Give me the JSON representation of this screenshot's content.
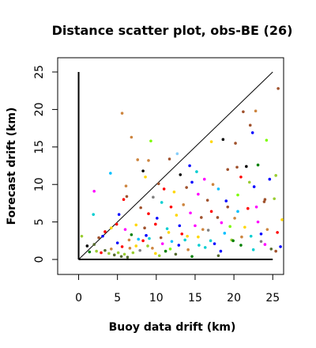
{
  "chart_data": {
    "type": "scatter",
    "title": "Distance scatter plot, obs-BE (26)",
    "xlabel": "Buoy data drift (km)",
    "ylabel": "Forecast drift (km)",
    "xlim": [
      -2.7,
      26.4
    ],
    "ylim": [
      -2.0,
      26.9
    ],
    "xticks": [
      0,
      5,
      10,
      15,
      20,
      25
    ],
    "yticks": [
      0,
      5,
      10,
      15,
      20,
      25
    ],
    "grid": false,
    "legend": "none",
    "reference_lines": [
      {
        "kind": "diagonal",
        "x": [
          0,
          25
        ],
        "y": [
          0,
          25
        ],
        "color": "#000000"
      },
      {
        "kind": "x-axis-ref",
        "x": [
          0,
          25
        ],
        "y": [
          0,
          0
        ],
        "color": "#000000"
      },
      {
        "kind": "y-axis-ref",
        "x": [
          0,
          0
        ],
        "y": [
          0,
          25
        ],
        "color": "#000000"
      }
    ],
    "points": [
      {
        "x": 5.6,
        "y": 19.5,
        "color": "#cd853f"
      },
      {
        "x": 6.8,
        "y": 16.3,
        "color": "#cd853f"
      },
      {
        "x": 9.3,
        "y": 15.8,
        "color": "#7cfc00"
      },
      {
        "x": 7.6,
        "y": 13.3,
        "color": "#cd853f"
      },
      {
        "x": 9.0,
        "y": 13.2,
        "color": "#cd853f"
      },
      {
        "x": 12.7,
        "y": 14.1,
        "color": "#87cefa"
      },
      {
        "x": 11.7,
        "y": 13.4,
        "color": "#a0522d"
      },
      {
        "x": 8.3,
        "y": 11.8,
        "color": "#000000"
      },
      {
        "x": 8.6,
        "y": 11.0,
        "color": "#ffd700"
      },
      {
        "x": 4.1,
        "y": 11.5,
        "color": "#00bfff"
      },
      {
        "x": 2.0,
        "y": 9.1,
        "color": "#ff00ff"
      },
      {
        "x": 6.1,
        "y": 9.8,
        "color": "#cd853f"
      },
      {
        "x": 6.2,
        "y": 8.4,
        "color": "#a0522d"
      },
      {
        "x": 5.8,
        "y": 8.0,
        "color": "#ff0000"
      },
      {
        "x": 5.2,
        "y": 6.0,
        "color": "#0000ff"
      },
      {
        "x": 4.9,
        "y": 4.7,
        "color": "#ff0000"
      },
      {
        "x": 4.2,
        "y": 4.2,
        "color": "#ffd700"
      },
      {
        "x": 3.4,
        "y": 3.7,
        "color": "#ff0000"
      },
      {
        "x": 3.1,
        "y": 3.1,
        "color": "#0000ff"
      },
      {
        "x": 2.6,
        "y": 2.9,
        "color": "#a0522d"
      },
      {
        "x": 1.9,
        "y": 6.0,
        "color": "#00ced1"
      },
      {
        "x": 2.0,
        "y": 2.0,
        "color": "#556b2f"
      },
      {
        "x": 1.1,
        "y": 1.8,
        "color": "#000000"
      },
      {
        "x": 0.4,
        "y": 3.1,
        "color": "#9acd32"
      },
      {
        "x": 1.4,
        "y": 1.0,
        "color": "#008000"
      },
      {
        "x": 2.3,
        "y": 1.1,
        "color": "#9acd32"
      },
      {
        "x": 2.9,
        "y": 0.9,
        "color": "#ff0000"
      },
      {
        "x": 3.4,
        "y": 1.2,
        "color": "#556b2f"
      },
      {
        "x": 3.9,
        "y": 0.8,
        "color": "#9acd32"
      },
      {
        "x": 4.2,
        "y": 1.4,
        "color": "#cd853f"
      },
      {
        "x": 4.6,
        "y": 0.6,
        "color": "#556b2f"
      },
      {
        "x": 5.1,
        "y": 0.9,
        "color": "#9acd32"
      },
      {
        "x": 5.5,
        "y": 0.4,
        "color": "#556b2f"
      },
      {
        "x": 5.9,
        "y": 0.7,
        "color": "#9acd32"
      },
      {
        "x": 6.3,
        "y": 0.3,
        "color": "#556b2f"
      },
      {
        "x": 6.6,
        "y": 1.5,
        "color": "#cd853f"
      },
      {
        "x": 7.0,
        "y": 0.9,
        "color": "#9acd32"
      },
      {
        "x": 7.4,
        "y": 1.8,
        "color": "#ffd700"
      },
      {
        "x": 7.9,
        "y": 1.2,
        "color": "#808080"
      },
      {
        "x": 8.3,
        "y": 2.5,
        "color": "#ff0000"
      },
      {
        "x": 8.7,
        "y": 3.2,
        "color": "#0000ff"
      },
      {
        "x": 9.1,
        "y": 2.8,
        "color": "#00ced1"
      },
      {
        "x": 9.5,
        "y": 1.5,
        "color": "#cd853f"
      },
      {
        "x": 9.9,
        "y": 0.8,
        "color": "#ffd700"
      },
      {
        "x": 10.4,
        "y": 0.5,
        "color": "#9acd32"
      },
      {
        "x": 10.8,
        "y": 2.1,
        "color": "#ff00ff"
      },
      {
        "x": 11.2,
        "y": 1.1,
        "color": "#008000"
      },
      {
        "x": 11.6,
        "y": 3.6,
        "color": "#ffd700"
      },
      {
        "x": 12.0,
        "y": 2.4,
        "color": "#00bfff"
      },
      {
        "x": 12.5,
        "y": 0.7,
        "color": "#556b2f"
      },
      {
        "x": 12.9,
        "y": 1.9,
        "color": "#0000ff"
      },
      {
        "x": 13.3,
        "y": 3.4,
        "color": "#ff0000"
      },
      {
        "x": 13.7,
        "y": 2.6,
        "color": "#00ced1"
      },
      {
        "x": 14.1,
        "y": 1.3,
        "color": "#cd853f"
      },
      {
        "x": 14.6,
        "y": 0.4,
        "color": "#008000"
      },
      {
        "x": 15.0,
        "y": 4.5,
        "color": "#ff00ff"
      },
      {
        "x": 15.4,
        "y": 3.0,
        "color": "#ffd700"
      },
      {
        "x": 15.8,
        "y": 5.6,
        "color": "#a0522d"
      },
      {
        "x": 16.3,
        "y": 1.6,
        "color": "#00ced1"
      },
      {
        "x": 16.7,
        "y": 3.9,
        "color": "#808080"
      },
      {
        "x": 17.1,
        "y": 6.4,
        "color": "#ff0000"
      },
      {
        "x": 17.5,
        "y": 2.1,
        "color": "#0000ff"
      },
      {
        "x": 18.0,
        "y": 0.5,
        "color": "#556b2f"
      },
      {
        "x": 18.4,
        "y": 4.9,
        "color": "#ff00ff"
      },
      {
        "x": 18.8,
        "y": 3.5,
        "color": "#00bfff"
      },
      {
        "x": 19.2,
        "y": 7.0,
        "color": "#a0522d"
      },
      {
        "x": 19.7,
        "y": 2.6,
        "color": "#9acd32"
      },
      {
        "x": 20.1,
        "y": 5.5,
        "color": "#cd853f"
      },
      {
        "x": 20.5,
        "y": 8.6,
        "color": "#7cfc00"
      },
      {
        "x": 20.9,
        "y": 1.9,
        "color": "#008000"
      },
      {
        "x": 21.4,
        "y": 4.3,
        "color": "#ffd700"
      },
      {
        "x": 21.8,
        "y": 6.8,
        "color": "#ff0000"
      },
      {
        "x": 22.2,
        "y": 3.1,
        "color": "#00ced1"
      },
      {
        "x": 22.6,
        "y": 9.7,
        "color": "#0000ff"
      },
      {
        "x": 23.1,
        "y": 5.0,
        "color": "#ff00ff"
      },
      {
        "x": 23.5,
        "y": 2.4,
        "color": "#808080"
      },
      {
        "x": 23.9,
        "y": 7.7,
        "color": "#a0522d"
      },
      {
        "x": 24.3,
        "y": 4.0,
        "color": "#cd853f"
      },
      {
        "x": 24.8,
        "y": 1.4,
        "color": "#556b2f"
      },
      {
        "x": 25.2,
        "y": 8.1,
        "color": "#9acd32"
      },
      {
        "x": 25.6,
        "y": 3.6,
        "color": "#ff0000"
      },
      {
        "x": 26.0,
        "y": 1.7,
        "color": "#0000ff"
      },
      {
        "x": 26.2,
        "y": 5.3,
        "color": "#ffd700"
      },
      {
        "x": 25.7,
        "y": 22.8,
        "color": "#a0522d"
      },
      {
        "x": 22.8,
        "y": 19.8,
        "color": "#cd853f"
      },
      {
        "x": 21.2,
        "y": 19.7,
        "color": "#a0522d"
      },
      {
        "x": 22.1,
        "y": 17.9,
        "color": "#a0522d"
      },
      {
        "x": 22.4,
        "y": 16.9,
        "color": "#0000ff"
      },
      {
        "x": 18.6,
        "y": 16.0,
        "color": "#000000"
      },
      {
        "x": 20.2,
        "y": 15.5,
        "color": "#a0522d"
      },
      {
        "x": 24.2,
        "y": 15.9,
        "color": "#7cfc00"
      },
      {
        "x": 17.1,
        "y": 15.7,
        "color": "#ffd700"
      },
      {
        "x": 21.6,
        "y": 12.4,
        "color": "#000000"
      },
      {
        "x": 23.1,
        "y": 12.6,
        "color": "#008000"
      },
      {
        "x": 25.4,
        "y": 11.2,
        "color": "#9acd32"
      },
      {
        "x": 19.2,
        "y": 12.0,
        "color": "#a0522d"
      },
      {
        "x": 20.4,
        "y": 12.3,
        "color": "#a0522d"
      },
      {
        "x": 14.3,
        "y": 12.5,
        "color": "#0000ff"
      },
      {
        "x": 15.2,
        "y": 11.7,
        "color": "#00ced1"
      },
      {
        "x": 13.1,
        "y": 11.3,
        "color": "#000000"
      },
      {
        "x": 16.2,
        "y": 10.7,
        "color": "#ff00ff"
      },
      {
        "x": 17.3,
        "y": 10.0,
        "color": "#cd853f"
      },
      {
        "x": 10.3,
        "y": 10.1,
        "color": "#a0522d"
      },
      {
        "x": 11.0,
        "y": 9.4,
        "color": "#ff0000"
      },
      {
        "x": 12.3,
        "y": 9.0,
        "color": "#ffd700"
      },
      {
        "x": 13.9,
        "y": 9.6,
        "color": "#a0522d"
      },
      {
        "x": 14.6,
        "y": 10.3,
        "color": "#0000ff"
      },
      {
        "x": 15.4,
        "y": 8.7,
        "color": "#ff00ff"
      },
      {
        "x": 18.0,
        "y": 9.4,
        "color": "#00bfff"
      },
      {
        "x": 20.9,
        "y": 11.0,
        "color": "#ff0000"
      },
      {
        "x": 22.0,
        "y": 10.3,
        "color": "#9acd32"
      },
      {
        "x": 24.6,
        "y": 10.7,
        "color": "#0000ff"
      },
      {
        "x": 24.0,
        "y": 8.0,
        "color": "#a0522d"
      },
      {
        "x": 9.6,
        "y": 8.3,
        "color": "#808080"
      },
      {
        "x": 10.7,
        "y": 7.6,
        "color": "#00ced1"
      },
      {
        "x": 11.9,
        "y": 7.0,
        "color": "#ff0000"
      },
      {
        "x": 13.5,
        "y": 7.3,
        "color": "#cd853f"
      },
      {
        "x": 16.6,
        "y": 7.9,
        "color": "#a0522d"
      },
      {
        "x": 19.0,
        "y": 7.8,
        "color": "#0000ff"
      },
      {
        "x": 22.9,
        "y": 7.0,
        "color": "#ff00ff"
      },
      {
        "x": 8.0,
        "y": 6.9,
        "color": "#a0522d"
      },
      {
        "x": 9.0,
        "y": 6.1,
        "color": "#ff0000"
      },
      {
        "x": 10.1,
        "y": 5.5,
        "color": "#0000ff"
      },
      {
        "x": 12.6,
        "y": 5.9,
        "color": "#ffd700"
      },
      {
        "x": 14.4,
        "y": 6.2,
        "color": "#ff00ff"
      },
      {
        "x": 17.9,
        "y": 5.6,
        "color": "#a0522d"
      },
      {
        "x": 20.5,
        "y": 6.4,
        "color": "#00bfff"
      },
      {
        "x": 7.4,
        "y": 4.6,
        "color": "#ffd700"
      },
      {
        "x": 8.5,
        "y": 4.2,
        "color": "#a0522d"
      },
      {
        "x": 9.9,
        "y": 4.7,
        "color": "#ff0000"
      },
      {
        "x": 11.4,
        "y": 4.1,
        "color": "#00ced1"
      },
      {
        "x": 13.0,
        "y": 4.5,
        "color": "#0000ff"
      },
      {
        "x": 16.0,
        "y": 4.0,
        "color": "#cd853f"
      },
      {
        "x": 19.5,
        "y": 4.4,
        "color": "#7cfc00"
      },
      {
        "x": 6.0,
        "y": 4.0,
        "color": "#ff00ff"
      },
      {
        "x": 6.8,
        "y": 3.3,
        "color": "#008000"
      },
      {
        "x": 7.7,
        "y": 2.7,
        "color": "#00bfff"
      },
      {
        "x": 10.6,
        "y": 2.9,
        "color": "#a0522d"
      },
      {
        "x": 14.0,
        "y": 3.1,
        "color": "#ffd700"
      },
      {
        "x": 17.0,
        "y": 2.5,
        "color": "#00ced1"
      },
      {
        "x": 21.0,
        "y": 3.0,
        "color": "#cd853f"
      },
      {
        "x": 23.5,
        "y": 3.4,
        "color": "#0000ff"
      },
      {
        "x": 5.0,
        "y": 2.2,
        "color": "#0000ff"
      },
      {
        "x": 5.6,
        "y": 1.7,
        "color": "#ff0000"
      },
      {
        "x": 8.9,
        "y": 1.8,
        "color": "#9acd32"
      },
      {
        "x": 15.5,
        "y": 1.9,
        "color": "#00ced1"
      },
      {
        "x": 19.9,
        "y": 2.5,
        "color": "#008000"
      },
      {
        "x": 24.0,
        "y": 2.0,
        "color": "#ff00ff"
      },
      {
        "x": 6.5,
        "y": 2.6,
        "color": "#cd853f"
      },
      {
        "x": 11.8,
        "y": 1.4,
        "color": "#7cfc00"
      },
      {
        "x": 18.3,
        "y": 1.1,
        "color": "#0000ff"
      },
      {
        "x": 22.5,
        "y": 1.3,
        "color": "#00ced1"
      },
      {
        "x": 25.4,
        "y": 1.1,
        "color": "#a0522d"
      }
    ]
  }
}
